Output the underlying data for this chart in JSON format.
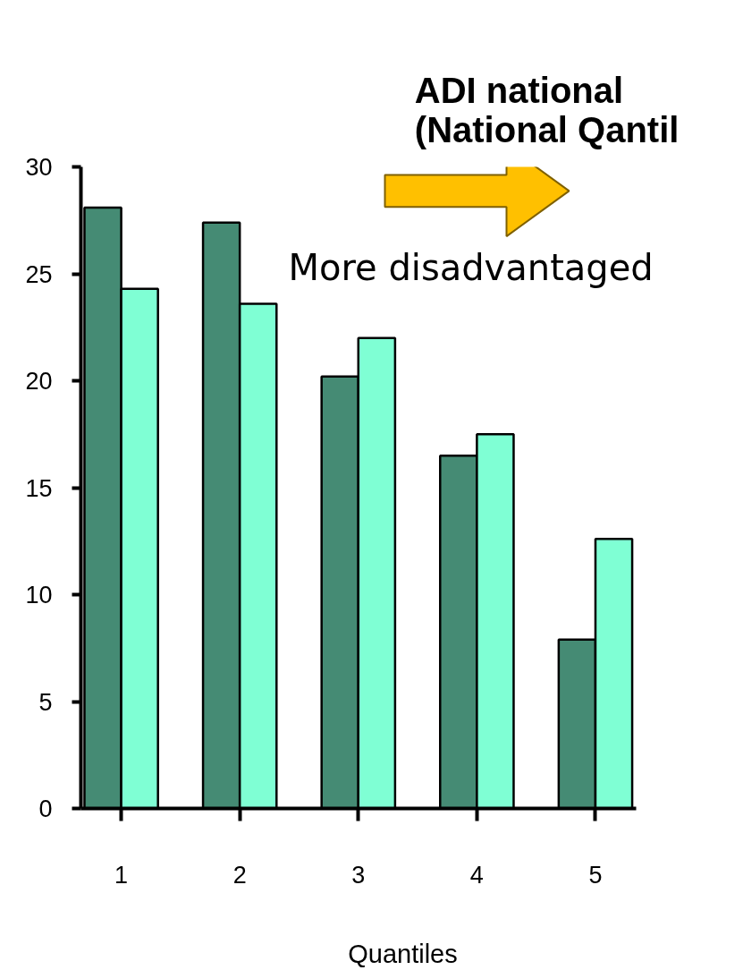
{
  "chart_data": {
    "type": "bar",
    "title": "ADI national\n (National Qantil",
    "xlabel": "Quantiles",
    "annotations": [
      "More disadvantaged"
    ],
    "categories": [
      "1",
      "2",
      "3",
      "4",
      "5"
    ],
    "series": [
      {
        "color": "#458b74",
        "values": [
          28.1,
          27.4,
          20.2,
          16.5,
          7.9
        ]
      },
      {
        "color": "#7fffd4",
        "values": [
          24.3,
          23.6,
          22.0,
          17.5,
          12.6
        ]
      }
    ],
    "ylim": [
      0,
      30
    ],
    "yticks": [
      0,
      5,
      10,
      15,
      20,
      25,
      30
    ],
    "grid": false
  }
}
